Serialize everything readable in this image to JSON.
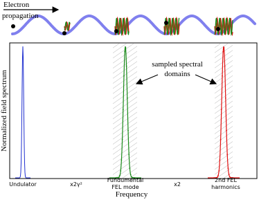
{
  "header": {
    "electron_label": [
      "Electron",
      "propagation"
    ]
  },
  "plot": {
    "y_label": "Normalized field spectrum",
    "x_label": "Frequency",
    "x_ticks": [
      [
        "Undulator"
      ],
      [
        "x2γ²"
      ],
      [
        "Fundumental",
        "FEL mode"
      ],
      [
        "x2"
      ],
      [
        "2nd FEL",
        "harmonics"
      ]
    ],
    "annotation": [
      "sampled spectral",
      "domains"
    ]
  }
}
